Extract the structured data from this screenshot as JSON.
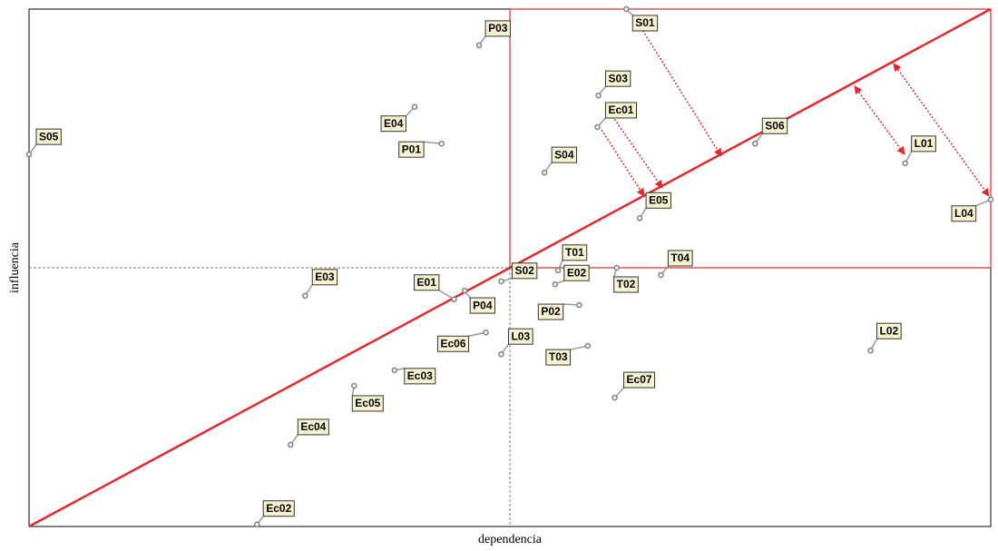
{
  "chart_data": {
    "type": "scatter",
    "x_label": "dependencia",
    "y_label": "influencia",
    "xlim": [
      0,
      100
    ],
    "ylim": [
      0,
      100
    ],
    "labels": [
      "S01",
      "P03",
      "S03",
      "E04",
      "Ec01",
      "S06",
      "P01",
      "S05",
      "L01",
      "S04",
      "L04",
      "E05",
      "T01",
      "T04",
      "E02",
      "T02",
      "S02",
      "E03",
      "E01",
      "P04",
      "P02",
      "Ec06",
      "L03",
      "T03",
      "L02",
      "Ec03",
      "Ec07",
      "Ec05",
      "Ec04",
      "Ec02"
    ],
    "x": [
      62.1,
      46.8,
      59.2,
      40.1,
      59.1,
      75.5,
      42.9,
      0,
      91.1,
      53.6,
      100,
      63.5,
      55.0,
      65.7,
      54.7,
      61.1,
      49.1,
      28.7,
      44.2,
      45.3,
      57.2,
      47.5,
      49.1,
      58.1,
      87.5,
      38.0,
      60.9,
      33.8,
      27.2,
      23.7
    ],
    "values": [
      100,
      93.0,
      83.3,
      81.1,
      77.2,
      74.0,
      74.0,
      71.9,
      70.2,
      68.4,
      63.2,
      59.6,
      49.5,
      48.6,
      46.8,
      50.0,
      47.4,
      44.6,
      43.9,
      45.6,
      42.8,
      37.5,
      33.3,
      34.9,
      34.0,
      30.2,
      24.9,
      27.2,
      15.8,
      0.4
    ],
    "color": "#7f7f7f",
    "line_color": "#e0282e"
  }
}
